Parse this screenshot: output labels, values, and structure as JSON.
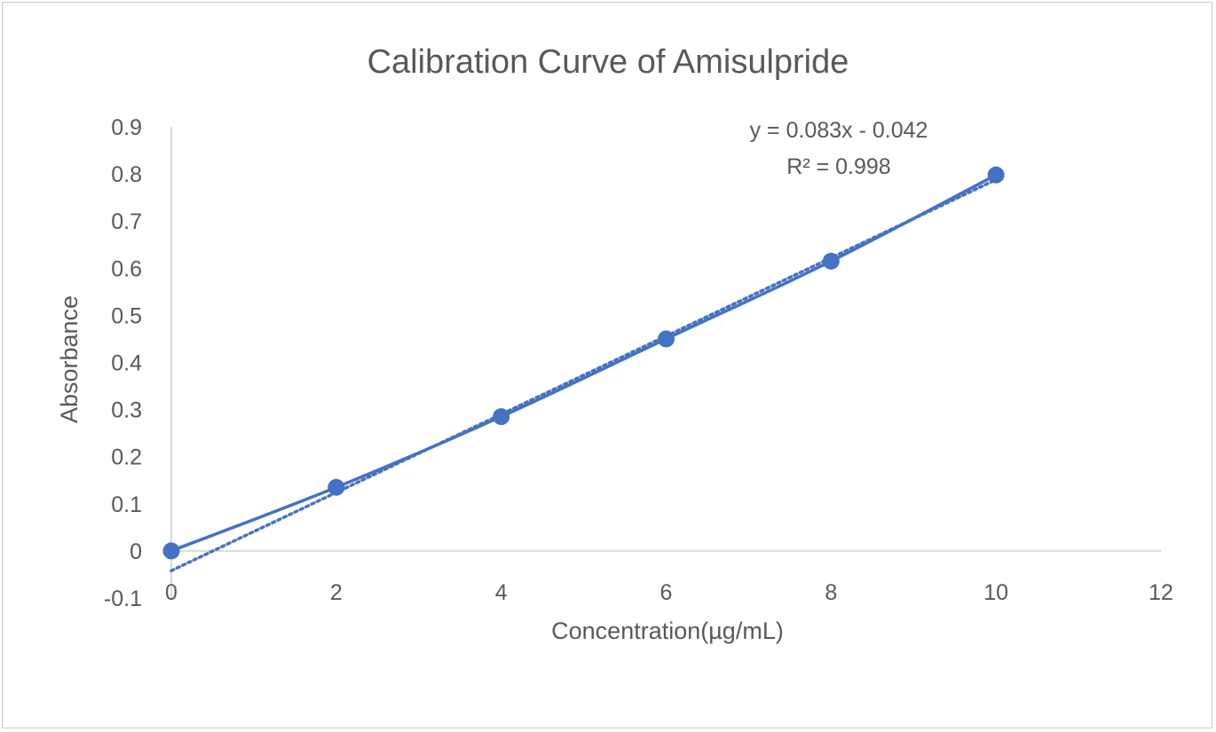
{
  "chart_data": {
    "type": "scatter",
    "title": "Calibration Curve of Amisulpride",
    "xlabel": "Concentration(µg/mL)",
    "ylabel": "Absorbance",
    "xlim": [
      0,
      12
    ],
    "ylim": [
      -0.1,
      0.9
    ],
    "x_ticks": [
      "0",
      "2",
      "4",
      "6",
      "8",
      "10",
      "12"
    ],
    "y_ticks": [
      "-0.1",
      "0",
      "0.1",
      "0.2",
      "0.3",
      "0.4",
      "0.5",
      "0.6",
      "0.7",
      "0.8",
      "0.9"
    ],
    "grid": false,
    "series": [
      {
        "x": [
          0,
          2,
          4,
          6,
          8,
          10
        ],
        "y": [
          0.0,
          0.135,
          0.285,
          0.45,
          0.615,
          0.798
        ],
        "color": "#4472C4",
        "style": "markers with smoothed solid line"
      }
    ],
    "trendline": {
      "type": "linear",
      "style": "dotted",
      "color": "#4472C4",
      "slope": 0.083,
      "intercept": -0.042,
      "equation": "y = 0.083x - 0.042",
      "r_squared": "R² = 0.998"
    }
  }
}
